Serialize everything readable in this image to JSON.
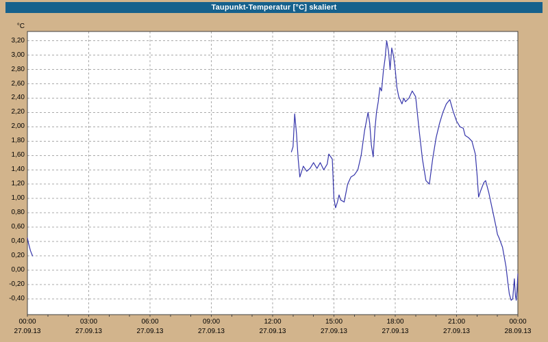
{
  "window": {
    "title": "Taupunkt-Temperatur [°C] skaliert"
  },
  "colors": {
    "titlebar": "#16618c",
    "titlebar_text": "#ffffff",
    "background": "#d2b48c",
    "plot_bg": "#ffffff",
    "line": "#3434aa",
    "grid": "#a8a8a8",
    "plot_border": "#404040",
    "axis_text": "#000000"
  },
  "chart_data": {
    "type": "line",
    "title": "Taupunkt-Temperatur [°C] skaliert",
    "xlabel": "",
    "ylabel": "°C",
    "grid": "dashed",
    "legend": "none",
    "xlim": [
      0,
      24
    ],
    "ylim": [
      -0.62,
      3.33
    ],
    "y_ticks": [
      {
        "label": "3,20",
        "value": 3.2
      },
      {
        "label": "3,00",
        "value": 3.0
      },
      {
        "label": "2,80",
        "value": 2.8
      },
      {
        "label": "2,60",
        "value": 2.6
      },
      {
        "label": "2,40",
        "value": 2.4
      },
      {
        "label": "2,20",
        "value": 2.2
      },
      {
        "label": "2,00",
        "value": 2.0
      },
      {
        "label": "1,80",
        "value": 1.8
      },
      {
        "label": "1,60",
        "value": 1.6
      },
      {
        "label": "1,40",
        "value": 1.4
      },
      {
        "label": "1,20",
        "value": 1.2
      },
      {
        "label": "1,00",
        "value": 1.0
      },
      {
        "label": "0,80",
        "value": 0.8
      },
      {
        "label": "0,60",
        "value": 0.6
      },
      {
        "label": "0,40",
        "value": 0.4
      },
      {
        "label": "0,20",
        "value": 0.2
      },
      {
        "label": "0,00",
        "value": 0.0
      },
      {
        "label": "-0,20",
        "value": -0.2
      },
      {
        "label": "-0,40",
        "value": -0.4
      }
    ],
    "x_ticks": [
      {
        "time": "00:00",
        "date": "27.09.13",
        "hour": 0
      },
      {
        "time": "03:00",
        "date": "27.09.13",
        "hour": 3
      },
      {
        "time": "06:00",
        "date": "27.09.13",
        "hour": 6
      },
      {
        "time": "09:00",
        "date": "27.09.13",
        "hour": 9
      },
      {
        "time": "12:00",
        "date": "27.09.13",
        "hour": 12
      },
      {
        "time": "15:00",
        "date": "27.09.13",
        "hour": 15
      },
      {
        "time": "18:00",
        "date": "27.09.13",
        "hour": 18
      },
      {
        "time": "21:00",
        "date": "27.09.13",
        "hour": 21
      },
      {
        "time": "00:00",
        "date": "28.09.13",
        "hour": 24
      }
    ],
    "series": [
      {
        "name": "Taupunkt-Temperatur [°C] skaliert",
        "color": "#3434aa",
        "segments": [
          [
            [
              0.0,
              0.45
            ],
            [
              0.05,
              0.38
            ],
            [
              0.15,
              0.27
            ],
            [
              0.25,
              0.2
            ]
          ],
          [
            [
              12.92,
              1.65
            ],
            [
              13.0,
              1.72
            ],
            [
              13.08,
              2.18
            ],
            [
              13.17,
              1.9
            ],
            [
              13.25,
              1.55
            ],
            [
              13.33,
              1.3
            ],
            [
              13.5,
              1.45
            ],
            [
              13.67,
              1.38
            ],
            [
              13.83,
              1.42
            ],
            [
              14.0,
              1.5
            ],
            [
              14.17,
              1.42
            ],
            [
              14.33,
              1.5
            ],
            [
              14.5,
              1.4
            ],
            [
              14.67,
              1.48
            ],
            [
              14.75,
              1.62
            ],
            [
              14.92,
              1.55
            ],
            [
              15.0,
              1.0
            ],
            [
              15.08,
              0.87
            ],
            [
              15.17,
              0.95
            ],
            [
              15.25,
              1.05
            ],
            [
              15.33,
              0.98
            ],
            [
              15.5,
              0.95
            ],
            [
              15.67,
              1.2
            ],
            [
              15.83,
              1.3
            ],
            [
              16.0,
              1.33
            ],
            [
              16.17,
              1.4
            ],
            [
              16.33,
              1.6
            ],
            [
              16.5,
              1.95
            ],
            [
              16.67,
              2.2
            ],
            [
              16.75,
              2.05
            ],
            [
              16.83,
              1.75
            ],
            [
              16.92,
              1.58
            ],
            [
              17.0,
              1.95
            ],
            [
              17.08,
              2.2
            ],
            [
              17.17,
              2.35
            ],
            [
              17.25,
              2.55
            ],
            [
              17.33,
              2.5
            ],
            [
              17.42,
              2.78
            ],
            [
              17.5,
              2.95
            ],
            [
              17.58,
              3.2
            ],
            [
              17.67,
              3.05
            ],
            [
              17.75,
              2.8
            ],
            [
              17.83,
              3.1
            ],
            [
              17.92,
              2.98
            ],
            [
              18.0,
              2.8
            ],
            [
              18.08,
              2.55
            ],
            [
              18.17,
              2.42
            ],
            [
              18.33,
              2.32
            ],
            [
              18.42,
              2.4
            ],
            [
              18.5,
              2.35
            ],
            [
              18.67,
              2.4
            ],
            [
              18.83,
              2.5
            ],
            [
              19.0,
              2.42
            ],
            [
              19.17,
              1.95
            ],
            [
              19.33,
              1.55
            ],
            [
              19.5,
              1.25
            ],
            [
              19.67,
              1.2
            ],
            [
              19.83,
              1.55
            ],
            [
              20.0,
              1.85
            ],
            [
              20.17,
              2.05
            ],
            [
              20.33,
              2.2
            ],
            [
              20.5,
              2.32
            ],
            [
              20.67,
              2.38
            ],
            [
              20.83,
              2.22
            ],
            [
              21.0,
              2.08
            ],
            [
              21.17,
              2.0
            ],
            [
              21.33,
              1.98
            ],
            [
              21.42,
              1.88
            ],
            [
              21.58,
              1.85
            ],
            [
              21.75,
              1.8
            ],
            [
              21.92,
              1.62
            ],
            [
              22.0,
              1.35
            ],
            [
              22.08,
              1.02
            ],
            [
              22.17,
              1.1
            ],
            [
              22.33,
              1.22
            ],
            [
              22.42,
              1.25
            ],
            [
              22.58,
              1.08
            ],
            [
              22.75,
              0.85
            ],
            [
              22.92,
              0.62
            ],
            [
              23.0,
              0.5
            ],
            [
              23.08,
              0.45
            ],
            [
              23.25,
              0.32
            ],
            [
              23.42,
              0.05
            ],
            [
              23.5,
              -0.15
            ],
            [
              23.58,
              -0.33
            ],
            [
              23.67,
              -0.42
            ],
            [
              23.75,
              -0.4
            ],
            [
              23.83,
              -0.12
            ],
            [
              23.88,
              -0.35
            ],
            [
              23.92,
              -0.42
            ],
            [
              23.96,
              -0.28
            ],
            [
              24.0,
              -0.05
            ]
          ]
        ]
      }
    ]
  }
}
